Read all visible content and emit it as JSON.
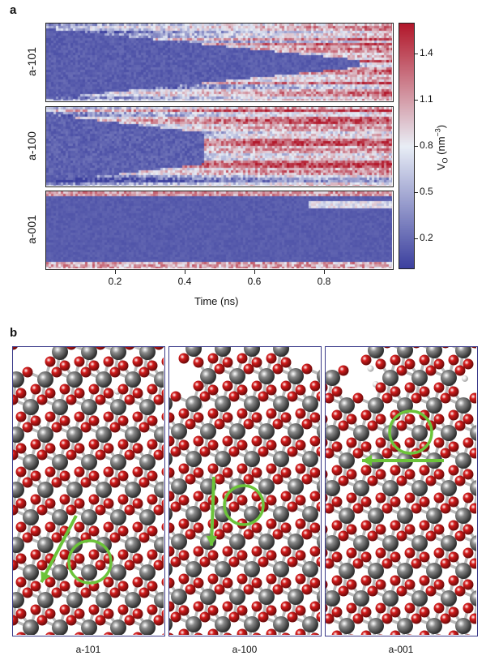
{
  "figure": {
    "panel_a_label": "a",
    "panel_b_label": "b",
    "x_axis_label": "Time (ns)",
    "colorbar_label_main": "V",
    "colorbar_label_sub": "O",
    "colorbar_label_unit": " (nm",
    "colorbar_label_exp": "−3",
    "colorbar_label_close": ")",
    "colorbar_colors": [
      "#3b3f9e",
      "#e9eef6",
      "#b2182b"
    ]
  },
  "chart_data": {
    "type": "heatmap",
    "title": "",
    "xlabel": "Time (ns)",
    "xlim": [
      0.0,
      1.0
    ],
    "xticks": [
      "0.2",
      "0.4",
      "0.6",
      "0.8"
    ],
    "xtick_values": [
      0.2,
      0.4,
      0.6,
      0.8
    ],
    "colorbar": {
      "label": "V_O (nm^-3)",
      "range": [
        0.0,
        1.6
      ],
      "ticks": [
        "1.4",
        "1.1",
        "0.8",
        "0.5",
        "0.2"
      ],
      "tick_values": [
        1.4,
        1.1,
        0.8,
        0.5,
        0.2
      ]
    },
    "rows": [
      {
        "name": "a-101"
      },
      {
        "name": "a-100"
      },
      {
        "name": "a-001"
      }
    ]
  },
  "panel_b": {
    "panels": [
      {
        "label": "a-101",
        "arrow": "diagonal-down-left"
      },
      {
        "label": "a-100",
        "arrow": "down"
      },
      {
        "label": "a-001",
        "arrow": "left"
      }
    ],
    "atom_colors": {
      "oxygen": "#d41c1c",
      "titanium": "#8a8a8a",
      "hydrogen": "#f2f2f2",
      "bond": "#b9b9b9",
      "highlight": "#6cc33a"
    }
  }
}
